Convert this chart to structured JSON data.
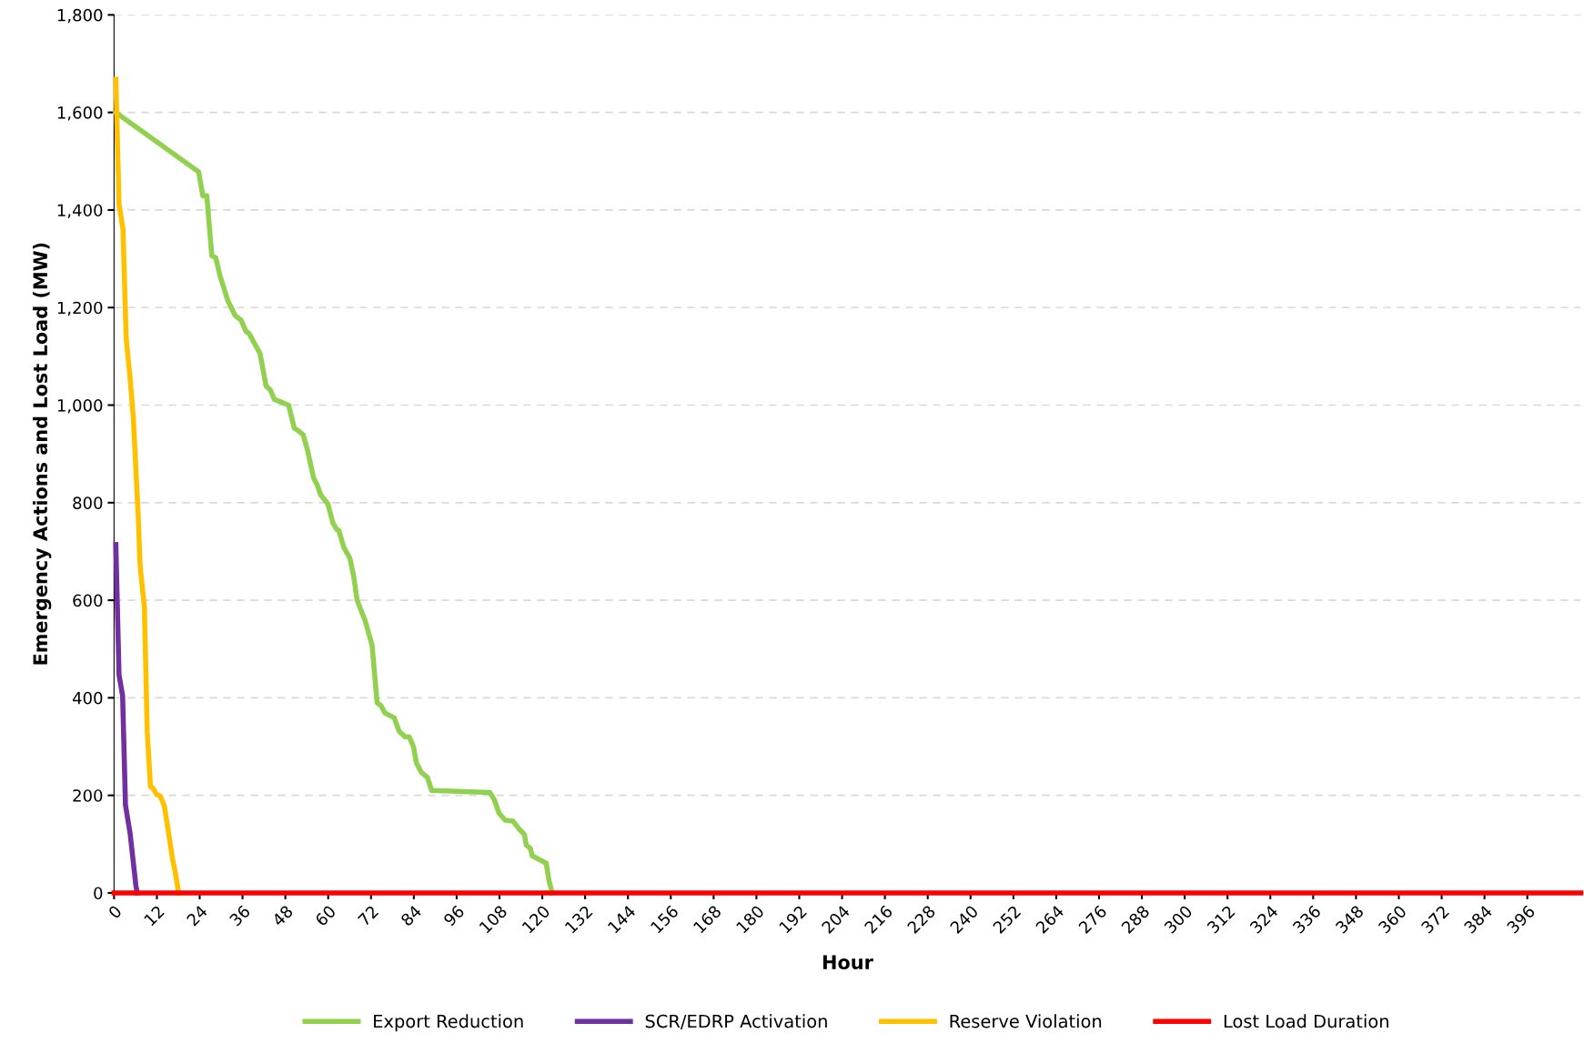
{
  "chart_data": {
    "type": "line",
    "xlabel": "Hour",
    "ylabel": "Emergency Actions and Lost Load (MW)",
    "xlim": [
      0,
      411
    ],
    "ylim": [
      0,
      1800
    ],
    "xticks": [
      0,
      12,
      24,
      36,
      48,
      60,
      72,
      84,
      96,
      108,
      120,
      132,
      144,
      156,
      168,
      180,
      192,
      204,
      216,
      228,
      240,
      252,
      264,
      276,
      288,
      300,
      312,
      324,
      336,
      348,
      360,
      372,
      384,
      396
    ],
    "yticks": [
      0,
      200,
      400,
      600,
      800,
      {
        "value": 1000,
        "label": "1,000"
      },
      {
        "value": 1200,
        "label": "1,200"
      },
      {
        "value": 1400,
        "label": "1,400"
      },
      {
        "value": 1600,
        "label": "1,600"
      },
      {
        "value": 1800,
        "label": "1,800"
      }
    ],
    "grid": "y",
    "legend": "bottom",
    "marker": "none",
    "line_style": "solid",
    "series": [
      {
        "name": "Export Reduction",
        "color": "#92d050",
        "x": [
          0.5,
          23.7,
          24.9,
          26,
          27.4,
          28.5,
          29.7,
          31.9,
          33.9,
          35.6,
          37,
          37.8,
          40.9,
          42.6,
          43.8,
          44.9,
          48.9,
          50.5,
          51.7,
          53,
          54.2,
          55.9,
          57,
          57.9,
          59.9,
          61.3,
          62.4,
          63,
          64.4,
          66.1,
          67.2,
          68.1,
          70.3,
          72.3,
          73.7,
          74.8,
          75.9,
          78.5,
          79.9,
          81.6,
          82.7,
          83.9,
          84.7,
          86.1,
          87.8,
          89,
          105.3,
          106.5,
          107.9,
          109.6,
          111.8,
          113.5,
          115,
          115.5,
          116.6,
          117.2,
          121.1,
          121.9,
          122.8
        ],
        "values": [
          1600,
          1478,
          1429,
          1429,
          1306,
          1302,
          1265,
          1214,
          1184,
          1174,
          1151,
          1147,
          1106,
          1039,
          1031,
          1012,
          1000,
          953,
          947,
          939,
          908,
          851,
          835,
          816,
          798,
          759,
          745,
          743,
          708,
          686,
          647,
          600,
          559,
          508,
          390,
          384,
          369,
          359,
          331,
          320,
          320,
          300,
          267,
          247,
          237,
          210,
          206,
          192,
          163,
          149,
          147,
          131,
          120,
          98,
          92,
          76,
          61,
          24,
          0
        ]
      },
      {
        "name": "SCR/EDRP Activation",
        "color": "#7030a0",
        "x": [
          0.5,
          1.4,
          2.4,
          3.2,
          4.5,
          5.2,
          6.1,
          6.5
        ],
        "values": [
          714,
          447,
          404,
          180,
          122,
          76,
          16,
          0
        ]
      },
      {
        "name": "Reserve Violation",
        "color": "#ffc000",
        "x": [
          0.5,
          1.4,
          2.5,
          3.4,
          4.5,
          5.4,
          6.8,
          7.3,
          8.5,
          9.3,
          10.2,
          11,
          11.9,
          13,
          14.1,
          15.2,
          16.4,
          17.2,
          18.1
        ],
        "values": [
          1668,
          1412,
          1361,
          1137,
          1055,
          974,
          769,
          671,
          586,
          331,
          218,
          214,
          202,
          198,
          178,
          127,
          69,
          41,
          0
        ]
      },
      {
        "name": "Lost Load Duration",
        "color": "#ff0000",
        "x": [
          0,
          411
        ],
        "values": [
          0,
          0
        ]
      }
    ]
  }
}
